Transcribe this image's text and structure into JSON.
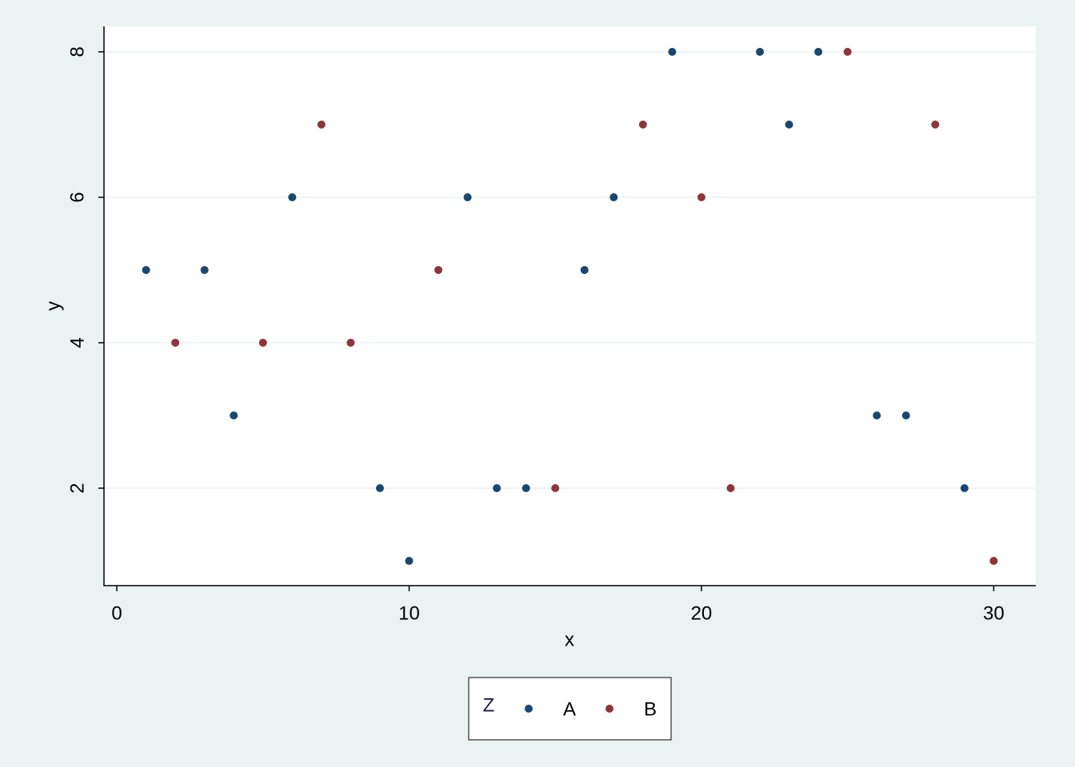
{
  "chart_data": {
    "type": "scatter",
    "x_label": "x",
    "y_label": "y",
    "xlim": [
      -0.44,
      31.44
    ],
    "ylim": [
      0.66,
      8.35
    ],
    "xticks": [
      0,
      10,
      20,
      30
    ],
    "yticks": [
      2,
      4,
      6,
      8
    ],
    "grid": true,
    "legend_title": "Z",
    "legend_position": "bottom",
    "series": [
      {
        "name": "A",
        "color": "#1a476f",
        "x": [
          1,
          3,
          4,
          6,
          9,
          10,
          12,
          13,
          14,
          16,
          17,
          19,
          22,
          23,
          24,
          26,
          27,
          29
        ],
        "values": [
          5,
          5,
          3,
          6,
          2,
          1,
          6,
          2,
          2,
          5,
          6,
          8,
          8,
          7,
          8,
          3,
          3,
          2
        ]
      },
      {
        "name": "B",
        "color": "#90353b",
        "x": [
          2,
          5,
          7,
          8,
          11,
          15,
          18,
          20,
          21,
          25,
          28,
          30
        ],
        "values": [
          4,
          4,
          7,
          4,
          5,
          2,
          7,
          6,
          2,
          8,
          7,
          1
        ]
      }
    ]
  }
}
